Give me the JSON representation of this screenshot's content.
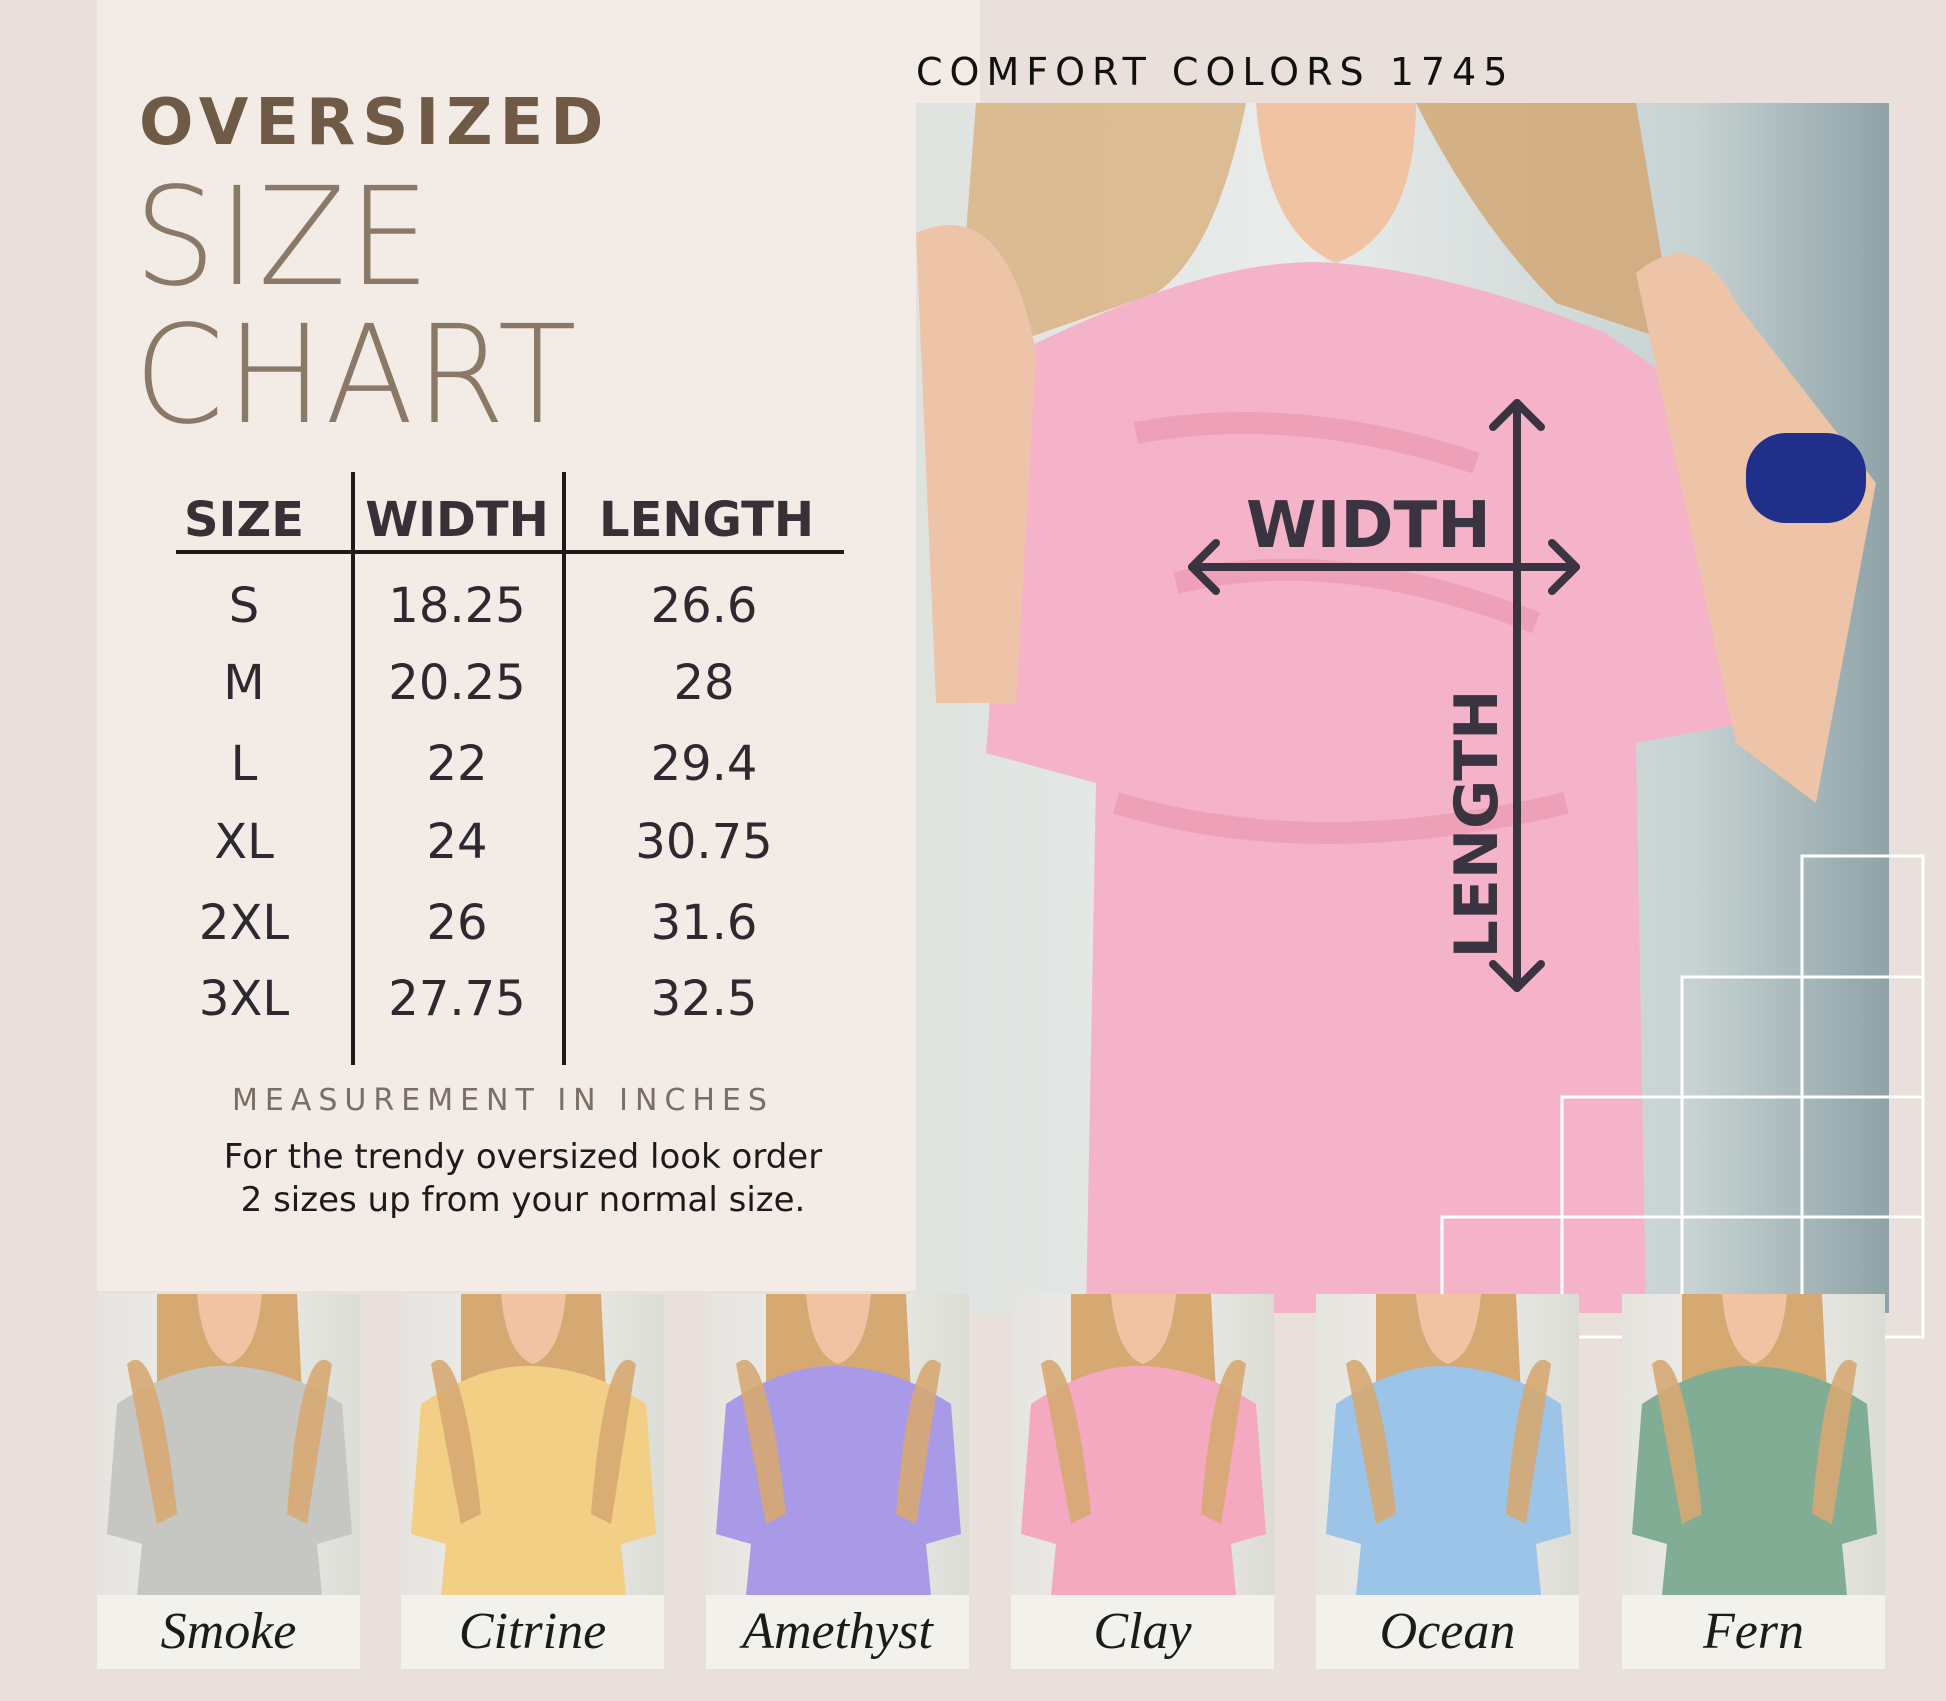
{
  "header": {
    "line1": "OVERSIZED",
    "line2": "SIZE",
    "line3": "CHART"
  },
  "brand": "COMFORT COLORS 1745",
  "table": {
    "columns": [
      "SIZE",
      "WIDTH",
      "LENGTH"
    ],
    "rows": [
      [
        "S",
        "18.25",
        "26.6"
      ],
      [
        "M",
        "20.25",
        "28"
      ],
      [
        "L",
        "22",
        "29.4"
      ],
      [
        "XL",
        "24",
        "30.75"
      ],
      [
        "2XL",
        "26",
        "31.6"
      ],
      [
        "3XL",
        "27.75",
        "32.5"
      ]
    ]
  },
  "unit_note": "MEASUREMENT IN INCHES",
  "tip": {
    "line1": "For the trendy oversized look order",
    "line2": "2 sizes up from your normal size."
  },
  "photo": {
    "width_label": "WIDTH",
    "length_label": "LENGTH",
    "shirt_color": "#f4b3c8"
  },
  "colors": [
    {
      "name": "Smoke",
      "hex": "#c6c7c2"
    },
    {
      "name": "Citrine",
      "hex": "#f3cf85"
    },
    {
      "name": "Amethyst",
      "hex": "#a89ae6"
    },
    {
      "name": "Clay",
      "hex": "#f4a9c0"
    },
    {
      "name": "Ocean",
      "hex": "#9cc3e8"
    },
    {
      "name": "Fern",
      "hex": "#80ad93"
    }
  ]
}
